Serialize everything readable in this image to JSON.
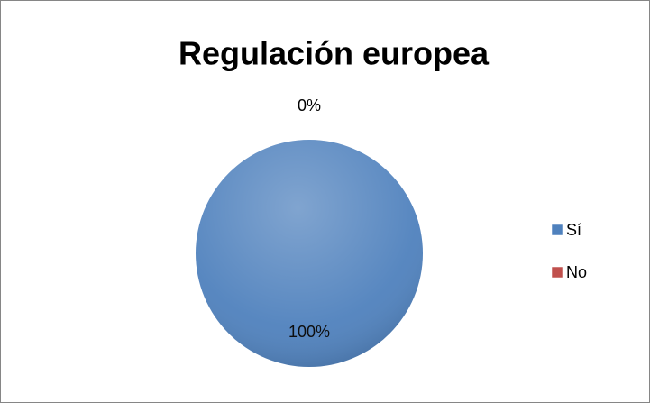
{
  "chart_data": {
    "type": "pie",
    "title": "Regulación europea",
    "categories": [
      "Sí",
      "No"
    ],
    "values": [
      100,
      0
    ],
    "value_labels": [
      "100%",
      "0%"
    ],
    "colors": [
      "#4f81bd",
      "#c0504d"
    ],
    "legend": "right"
  }
}
